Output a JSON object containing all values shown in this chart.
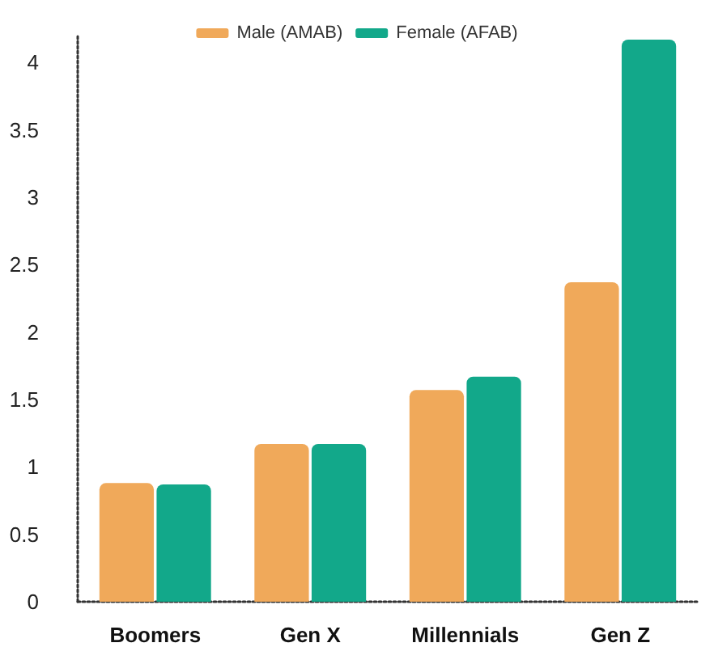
{
  "chart_data": {
    "type": "bar",
    "categories": [
      "Boomers",
      "Gen X",
      "Millennials",
      "Gen Z"
    ],
    "series": [
      {
        "name": "Male (AMAB)",
        "color": "#f0a95a",
        "values": [
          0.88,
          1.17,
          1.57,
          2.37
        ]
      },
      {
        "name": "Female (AFAB)",
        "color": "#12a88a",
        "values": [
          0.87,
          1.17,
          1.67,
          4.17
        ]
      }
    ],
    "ylim": [
      0,
      4.2
    ],
    "yticks": [
      0,
      0.5,
      1,
      1.5,
      2,
      2.5,
      3,
      3.5,
      4
    ],
    "grid": false,
    "legend": "top"
  }
}
